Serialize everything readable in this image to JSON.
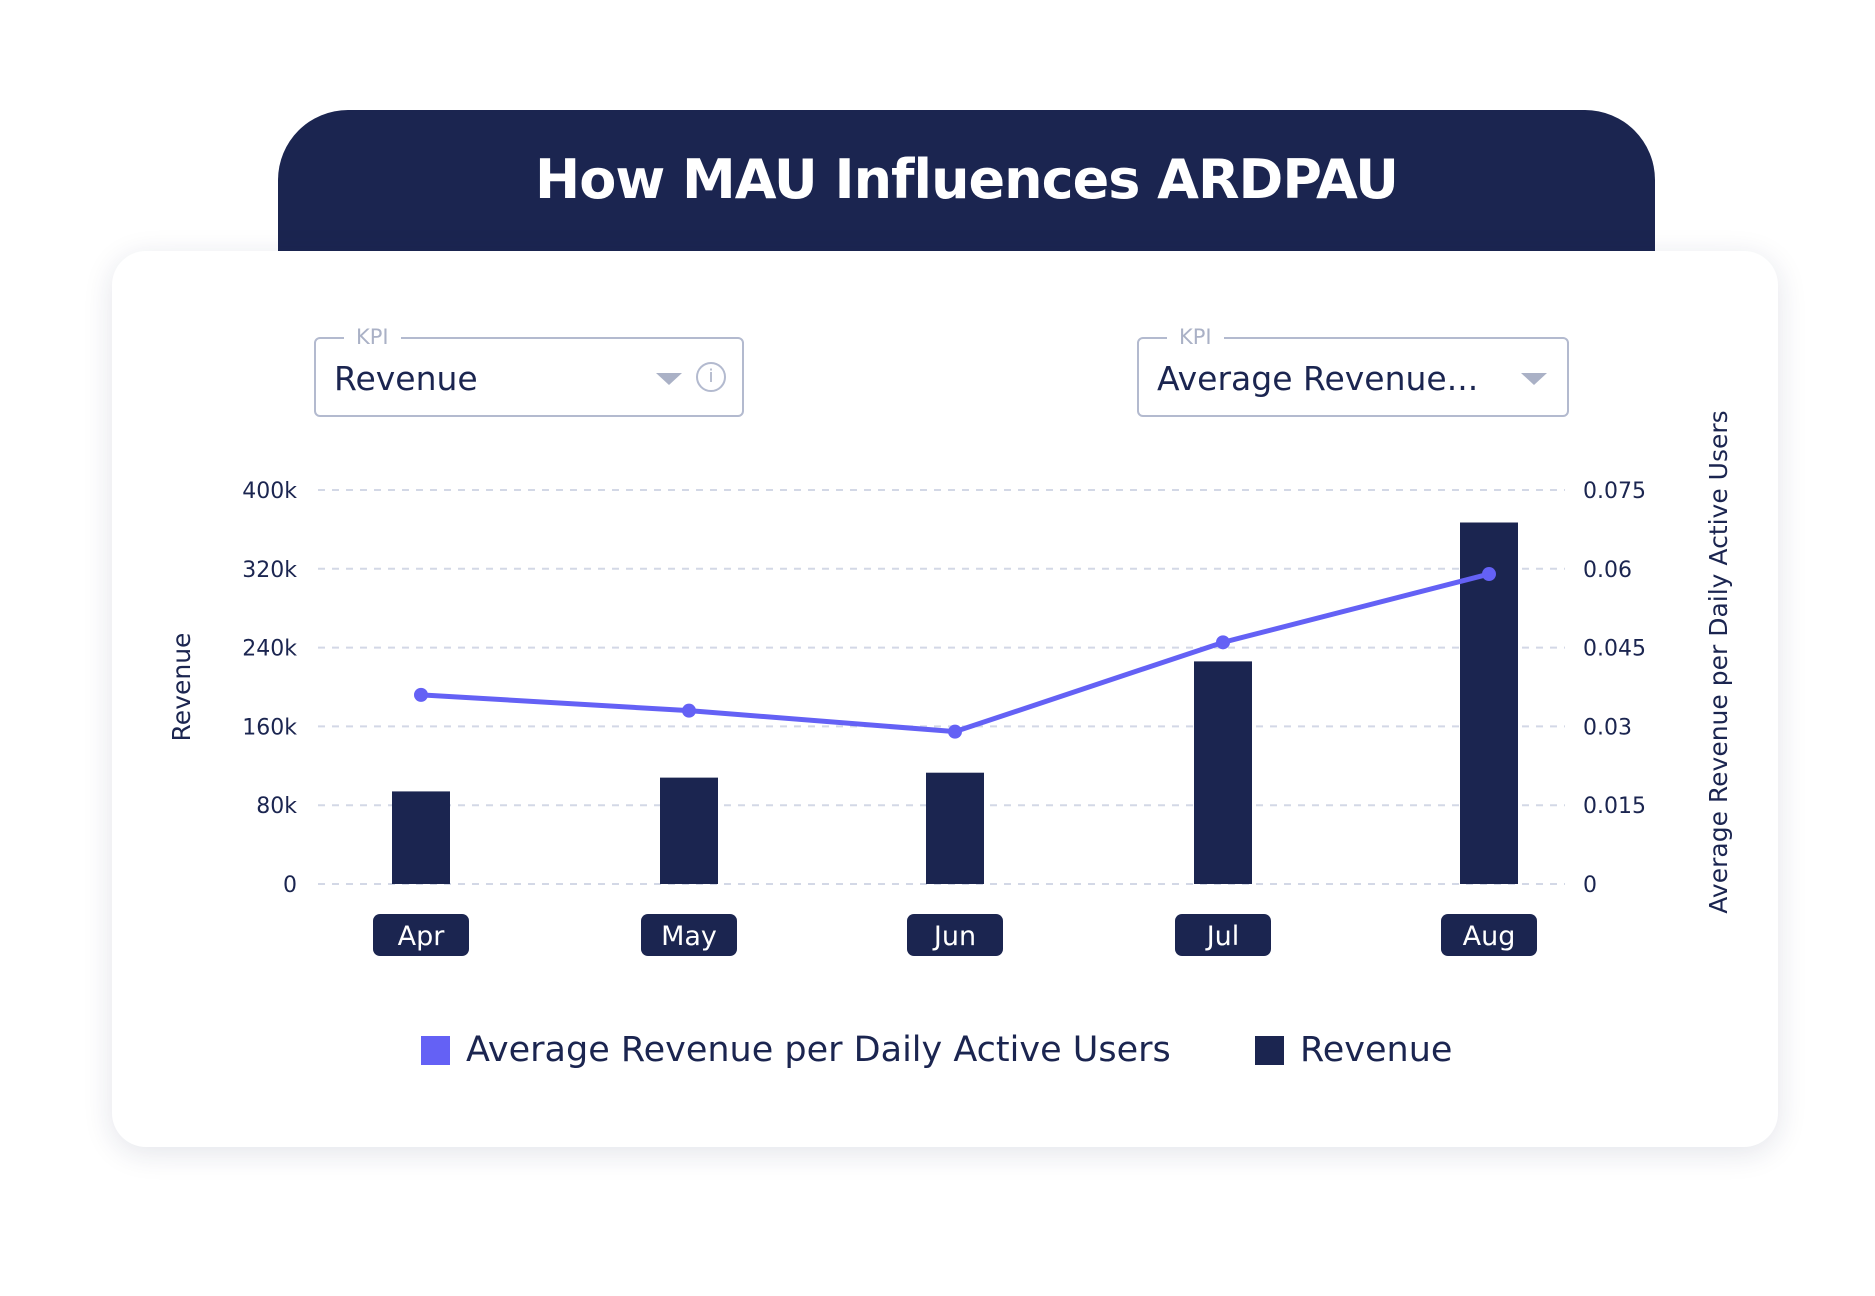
{
  "title": "How MAU Influences ARDPAU",
  "kpi_left": {
    "label": "KPI",
    "value": "Revenue",
    "icons": [
      "caret-down-icon",
      "info-icon"
    ]
  },
  "kpi_right": {
    "label": "KPI",
    "value": "Average Revenue...",
    "icons": [
      "caret-down-icon"
    ]
  },
  "colors": {
    "bar": "#1b2550",
    "line": "#6461f5",
    "header": "#1b2550"
  },
  "chart_data": {
    "type": "bar+line",
    "categories": [
      "Apr",
      "May",
      "Jun",
      "Jul",
      "Aug"
    ],
    "series": [
      {
        "name": "Revenue",
        "type": "bar",
        "axis": "left",
        "values": [
          94000,
          108000,
          113000,
          226000,
          367000
        ]
      },
      {
        "name": "Average Revenue per Daily Active Users",
        "type": "line",
        "axis": "right",
        "values": [
          0.036,
          0.033,
          0.029,
          0.046,
          0.059
        ]
      }
    ],
    "ylabel": "Revenue",
    "y2label": "Average Revenue per Daily Active Users",
    "ylim": [
      0,
      400000
    ],
    "y2lim": [
      0,
      0.075
    ],
    "yticks": [
      "0",
      "80k",
      "160k",
      "240k",
      "320k",
      "400k"
    ],
    "y2ticks": [
      "0",
      "0.015",
      "0.03",
      "0.045",
      "0.06",
      "0.075"
    ],
    "grid": true,
    "legend": "bottom"
  }
}
